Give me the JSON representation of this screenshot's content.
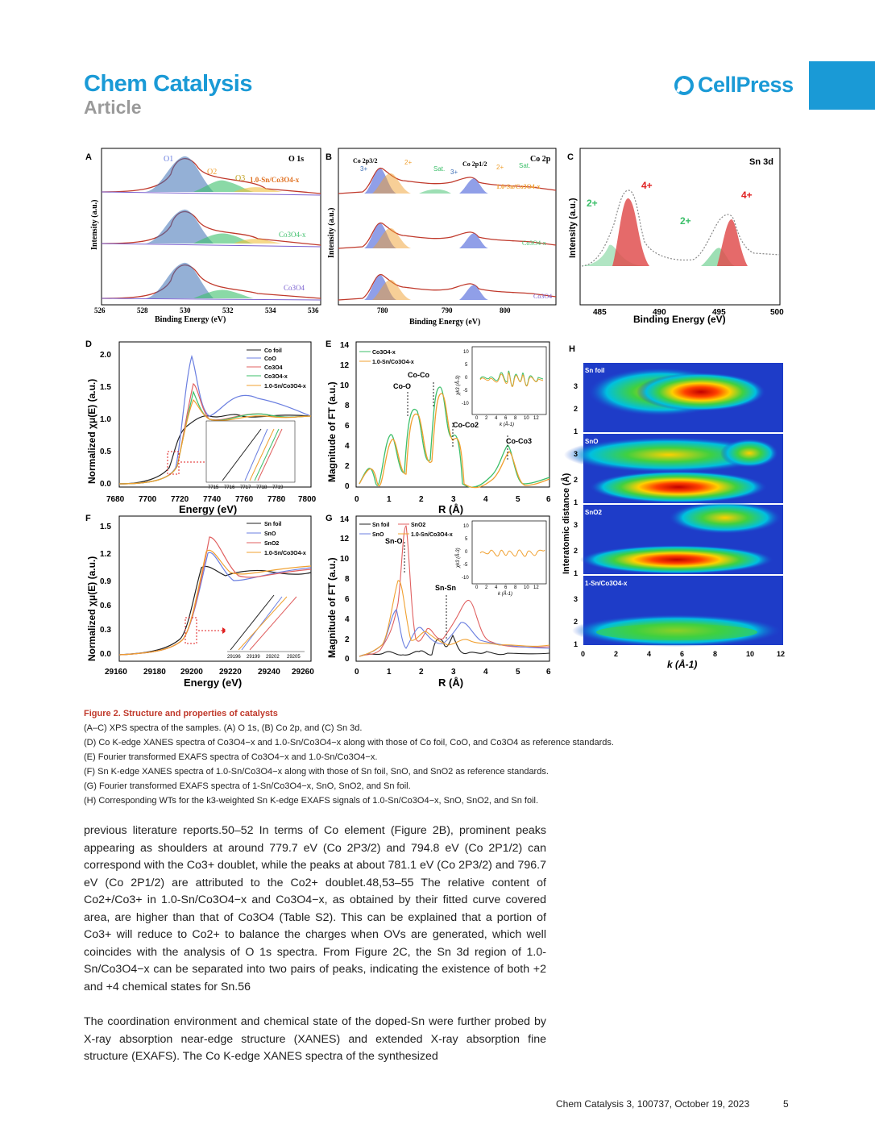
{
  "header": {
    "journal": "Chem Catalysis",
    "section": "Article",
    "publisher": "CellPress"
  },
  "figure": {
    "panels": {
      "A": {
        "label": "A",
        "title": "O 1s",
        "xlabel": "Binding Energy (eV)",
        "ylabel": "Intensity (a.u.)",
        "xticks": [
          "526",
          "528",
          "530",
          "532",
          "534",
          "536"
        ],
        "peaks": [
          "O1",
          "O2",
          "O3"
        ],
        "samples": [
          "1.0-Sn/Co3O4-x",
          "Co3O4-x",
          "Co3O4"
        ]
      },
      "B": {
        "label": "B",
        "title": "Co 2p",
        "xlabel": "Binding Energy (eV)",
        "ylabel": "Intensity (a.u.)",
        "xticks": [
          "780",
          "790",
          "800"
        ],
        "annotations": [
          "Co 2p3/2",
          "Co 2p1/2",
          "3+",
          "2+",
          "Sat.",
          "3+",
          "2+",
          "Sat."
        ],
        "samples": [
          "1.0-Sn/Co3O4-x",
          "Co3O4-x",
          "Co3O4"
        ]
      },
      "C": {
        "label": "C",
        "title": "Sn 3d",
        "xlabel": "Binding Energy (eV)",
        "ylabel": "Intensity (a.u.)",
        "xticks": [
          "485",
          "490",
          "495",
          "500"
        ],
        "annotations": [
          "4+",
          "2+",
          "2+",
          "4+"
        ]
      },
      "D": {
        "label": "D",
        "xlabel": "Energy (eV)",
        "ylabel": "Normalized χμ(E) (a.u.)",
        "xticks": [
          "7680",
          "7700",
          "7720",
          "7740",
          "7760",
          "7780",
          "7800"
        ],
        "yticks": [
          "0.0",
          "0.5",
          "1.0",
          "1.5",
          "2.0"
        ],
        "inset_xticks": [
          "7715",
          "7716",
          "7717",
          "7718",
          "7719"
        ],
        "legend": [
          "Co foil",
          "CoO",
          "Co3O4",
          "Co3O4-x",
          "1.0-Sn/Co3O4-x"
        ]
      },
      "E": {
        "label": "E",
        "xlabel": "R (Å)",
        "ylabel": "Magnitude of FT (a.u.)",
        "xticks": [
          "0",
          "1",
          "2",
          "3",
          "4",
          "5",
          "6"
        ],
        "yticks": [
          "0",
          "2",
          "4",
          "6",
          "8",
          "10",
          "12",
          "14"
        ],
        "legend": [
          "Co3O4-x",
          "1.0-Sn/Co3O4-x"
        ],
        "annotations": [
          "Co-O",
          "Co-Co",
          "Co-Co2",
          "Co-Co3"
        ],
        "inset_xlabel": "k (Å-1)",
        "inset_ylabel": "χk3 (Å-3)",
        "inset_xticks": [
          "0",
          "2",
          "4",
          "6",
          "8",
          "10",
          "12"
        ],
        "inset_yticks": [
          "10",
          "5",
          "0",
          "-5",
          "-10"
        ]
      },
      "F": {
        "label": "F",
        "xlabel": "Energy (eV)",
        "ylabel": "Normalized χμ(E) (a.u.)",
        "xticks": [
          "29160",
          "29180",
          "29200",
          "29220",
          "29240",
          "29260"
        ],
        "yticks": [
          "0.0",
          "0.3",
          "0.6",
          "0.9",
          "1.2",
          "1.5"
        ],
        "inset_xticks": [
          "29196",
          "29199",
          "29202",
          "29205"
        ],
        "legend": [
          "Sn foil",
          "SnO",
          "SnO2",
          "1.0-Sn/Co3O4-x"
        ]
      },
      "G": {
        "label": "G",
        "xlabel": "R (Å)",
        "ylabel": "Magnitude of FT (a.u.)",
        "xticks": [
          "0",
          "1",
          "2",
          "3",
          "4",
          "5",
          "6"
        ],
        "yticks": [
          "0",
          "2",
          "4",
          "6",
          "8",
          "10",
          "12",
          "14"
        ],
        "legend": [
          "Sn foil",
          "SnO2",
          "SnO",
          "1.0-Sn/Co3O4-x"
        ],
        "annotations": [
          "Sn-O",
          "Sn-Sn"
        ],
        "inset_ylabel": "χk3 (Å-3)",
        "inset_xlabel": "k (Å-1)",
        "inset_xticks": [
          "0",
          "2",
          "4",
          "6",
          "8",
          "10",
          "12"
        ],
        "inset_yticks": [
          "10",
          "5",
          "0",
          "-5",
          "-10"
        ]
      },
      "H": {
        "label": "H",
        "xlabel": "k (Å-1)",
        "ylabel": "Interatomic distance (Å)",
        "xticks": [
          "0",
          "2",
          "4",
          "6",
          "8",
          "10",
          "12"
        ],
        "yticks": [
          "1",
          "2",
          "3"
        ],
        "rows": [
          "Sn foil",
          "SnO",
          "SnO2",
          "1-Sn/Co3O4-x"
        ]
      }
    },
    "colors": {
      "black": "#222222",
      "blue": "#6b7fe0",
      "red": "#e06060",
      "green": "#3cbf6a",
      "orange": "#f0a030",
      "fit": "#c0392b"
    }
  },
  "caption": {
    "title": "Figure 2. Structure and properties of catalysts",
    "lines": [
      "(A–C) XPS spectra of the samples. (A) O 1s, (B) Co 2p, and (C) Sn 3d.",
      "(D) Co K-edge XANES spectra of Co3O4−x and 1.0-Sn/Co3O4−x along with those of Co foil, CoO, and Co3O4 as reference standards.",
      "(E) Fourier transformed EXAFS spectra of Co3O4−x and 1.0-Sn/Co3O4−x.",
      "(F) Sn K-edge XANES spectra of 1.0-Sn/Co3O4−x along with those of Sn foil, SnO, and SnO2 as reference standards.",
      "(G) Fourier transformed EXAFS spectra of 1-Sn/Co3O4−x, SnO, SnO2, and Sn foil.",
      "(H) Corresponding WTs for the k3-weighted Sn K-edge EXAFS signals of 1.0-Sn/Co3O4−x, SnO, SnO2, and Sn foil."
    ]
  },
  "body": {
    "p1": "previous literature reports.50–52 In terms of Co element (Figure 2B), prominent peaks appearing as shoulders at around 779.7 eV (Co 2P3/2) and 794.8 eV (Co 2P1/2) can correspond with the Co3+ doublet, while the peaks at about 781.1 eV (Co 2P3/2) and 796.7 eV (Co 2P1/2) are attributed to the Co2+ doublet.48,53–55 The relative content of Co2+/Co3+ in 1.0-Sn/Co3O4−x and Co3O4−x, as obtained by their fitted curve covered area, are higher than that of Co3O4 (Table S2). This can be explained that a portion of Co3+ will reduce to Co2+ to balance the charges when OVs are generated, which well coincides with the analysis of O 1s spectra. From Figure 2C, the Sn 3d region of 1.0-Sn/Co3O4−x can be separated into two pairs of peaks, indicating the existence of both +2 and +4 chemical states for Sn.56",
    "p2": "The coordination environment and chemical state of the doped-Sn were further probed by X-ray absorption near-edge structure (XANES) and extended X-ray absorption fine structure (EXAFS). The Co K-edge XANES spectra of the synthesized"
  },
  "footer": {
    "citation": "Chem Catalysis 3, 100737, October 19, 2023",
    "page": "5"
  }
}
